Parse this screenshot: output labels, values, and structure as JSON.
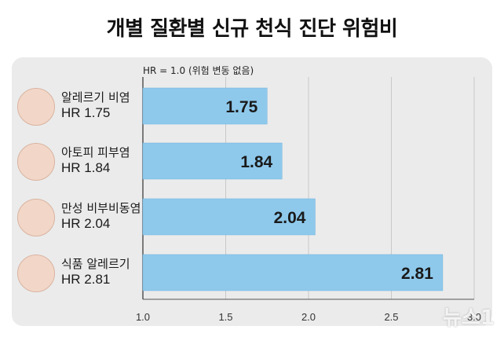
{
  "title": "개별 질환별 신규 천식 진단 위험비",
  "reference_label": "HR = 1.0 (위험 변동 없음)",
  "watermark": "뉴스1",
  "colors": {
    "bar": "#8ec9ec",
    "bar_border": "#6fb2dd",
    "panel": "#ebebeb",
    "grid": "#c8c8c8"
  },
  "chart_data": {
    "type": "bar",
    "orientation": "horizontal",
    "categories": [
      "알레르기 비염",
      "아토피 피부염",
      "만성 비부비동염",
      "식품 알레르기"
    ],
    "hr_labels": [
      "HR 1.75",
      "HR 1.84",
      "HR 2.04",
      "HR 2.81"
    ],
    "icons": [
      "nose-icon",
      "skin-icon",
      "sinus-icon",
      "food-allergy-icon"
    ],
    "values": [
      1.75,
      1.84,
      2.04,
      2.81
    ],
    "value_labels": [
      "1.75",
      "1.84",
      "2.04",
      "2.81"
    ],
    "xlim": [
      1.0,
      3.0
    ],
    "xticks": [
      1.0,
      1.5,
      2.0,
      2.5,
      3.0
    ],
    "xtick_labels": [
      "1.0",
      "1.5",
      "2.0",
      "2.5",
      "3.0"
    ],
    "grid": true,
    "reference_line": 1.0
  }
}
